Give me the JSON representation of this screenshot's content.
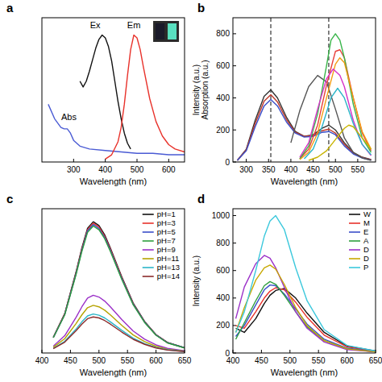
{
  "chart_data": [
    {
      "type": "line",
      "panel_label": "a",
      "xlabel": "Wavelength (nm)",
      "xlim": [
        200,
        650
      ],
      "xticks": [
        300,
        400,
        500,
        600
      ],
      "ylim": [
        0,
        100
      ],
      "tick_labels": "x",
      "annotations": [
        {
          "text": "Ex",
          "x": 368,
          "y": 93
        },
        {
          "text": "Em",
          "x": 490,
          "y": 93
        },
        {
          "text": "Abs",
          "x": 285,
          "y": 29
        }
      ],
      "series": [
        {
          "name": "Abs",
          "color": "#4a5bd4",
          "x": [
            220,
            240,
            260,
            270,
            280,
            290,
            300,
            320,
            350,
            400,
            450,
            500,
            550,
            600,
            650
          ],
          "values": [
            40,
            30,
            24,
            23,
            23,
            20,
            15,
            11,
            9,
            8,
            7,
            6,
            6,
            5,
            5
          ]
        },
        {
          "name": "Ex",
          "color": "#111111",
          "x": [
            320,
            330,
            340,
            350,
            360,
            370,
            380,
            390,
            400,
            410,
            420,
            430,
            440,
            450,
            460,
            470,
            480
          ],
          "values": [
            56,
            52,
            56,
            63,
            71,
            79,
            85,
            88,
            86,
            80,
            70,
            56,
            42,
            30,
            20,
            13,
            9
          ]
        },
        {
          "name": "Em",
          "color": "#e8322b",
          "x": [
            400,
            420,
            440,
            450,
            460,
            470,
            480,
            490,
            500,
            510,
            520,
            540,
            560,
            580,
            600,
            620,
            650
          ],
          "values": [
            2,
            5,
            14,
            24,
            40,
            60,
            78,
            88,
            86,
            78,
            66,
            44,
            28,
            18,
            12,
            9,
            7
          ]
        }
      ]
    },
    {
      "type": "line",
      "panel_label": "b",
      "xlabel": "Wavelength (nm)",
      "ylabel": [
        "Intensity (a.u.)",
        "Absorption (a.u.)"
      ],
      "xlim": [
        270,
        590
      ],
      "xticks": [
        300,
        350,
        400,
        450,
        500,
        550
      ],
      "ylim": [
        0,
        900
      ],
      "yticks": [
        0,
        200,
        400,
        600,
        800
      ],
      "vlines": [
        355,
        485
      ],
      "series": [
        {
          "color": "#333333",
          "x": [
            280,
            300,
            320,
            340,
            355,
            370,
            390,
            410,
            430,
            450,
            470,
            485,
            500,
            520,
            540,
            560,
            580
          ],
          "values": [
            10,
            80,
            260,
            410,
            450,
            400,
            280,
            190,
            160,
            170,
            210,
            230,
            200,
            120,
            60,
            30,
            15
          ]
        },
        {
          "color": "#c0392b",
          "x": [
            280,
            300,
            320,
            340,
            355,
            370,
            390,
            410,
            430,
            450,
            470,
            485,
            500,
            520,
            540,
            560,
            580
          ],
          "values": [
            10,
            75,
            240,
            380,
            420,
            375,
            265,
            185,
            160,
            165,
            195,
            205,
            180,
            110,
            55,
            28,
            14
          ]
        },
        {
          "color": "#3a4fc9",
          "x": [
            280,
            300,
            320,
            340,
            355,
            370,
            390,
            410,
            430,
            450,
            470,
            485,
            500,
            520,
            540,
            560,
            580
          ],
          "values": [
            10,
            70,
            220,
            350,
            390,
            350,
            250,
            180,
            155,
            160,
            185,
            190,
            170,
            100,
            50,
            25,
            12
          ]
        },
        {
          "color": "#555555",
          "x": [
            400,
            420,
            440,
            460,
            480,
            500,
            520,
            540,
            560,
            580
          ],
          "values": [
            120,
            320,
            470,
            540,
            500,
            330,
            150,
            60,
            25,
            10
          ]
        },
        {
          "color": "#e8413c",
          "x": [
            420,
            440,
            460,
            480,
            500,
            510,
            520,
            540,
            560,
            580
          ],
          "values": [
            20,
            80,
            230,
            480,
            690,
            700,
            650,
            400,
            180,
            70
          ]
        },
        {
          "color": "#39b54a",
          "x": [
            420,
            440,
            460,
            480,
            490,
            500,
            510,
            520,
            540,
            560,
            580
          ],
          "values": [
            20,
            100,
            300,
            600,
            760,
            800,
            760,
            650,
            360,
            150,
            60
          ]
        },
        {
          "color": "#f39c12",
          "x": [
            420,
            440,
            460,
            480,
            500,
            510,
            520,
            540,
            560,
            580
          ],
          "values": [
            15,
            60,
            180,
            400,
            610,
            650,
            620,
            400,
            190,
            80
          ]
        },
        {
          "color": "#d633c8",
          "x": [
            420,
            440,
            460,
            480,
            495,
            510,
            520,
            540,
            560,
            580
          ],
          "values": [
            30,
            120,
            330,
            520,
            580,
            540,
            470,
            260,
            110,
            40
          ]
        },
        {
          "color": "#2bb5c8",
          "x": [
            430,
            450,
            470,
            490,
            505,
            520,
            540,
            560,
            580
          ],
          "values": [
            20,
            80,
            220,
            400,
            460,
            400,
            240,
            110,
            45
          ]
        },
        {
          "color": "#c8b400",
          "x": [
            440,
            460,
            480,
            500,
            520,
            530,
            540,
            560,
            580
          ],
          "values": [
            10,
            30,
            70,
            140,
            210,
            230,
            220,
            150,
            80
          ]
        }
      ]
    },
    {
      "type": "line",
      "panel_label": "c",
      "xlabel": "Wavelength (nm)",
      "legend": "upper right",
      "xlim": [
        400,
        650
      ],
      "xticks": [
        400,
        450,
        500,
        550,
        600,
        650
      ],
      "ylim": [
        0,
        1000
      ],
      "tick_labels": "x",
      "series": [
        {
          "name": "pH=1",
          "color": "#111111",
          "x": [
            420,
            440,
            460,
            470,
            480,
            490,
            500,
            510,
            520,
            540,
            560,
            580,
            600,
            620,
            650
          ],
          "values": [
            109,
            273,
            564,
            728,
            865,
            910,
            883,
            819,
            728,
            528,
            346,
            218,
            127,
            73,
            36
          ]
        },
        {
          "name": "pH=3",
          "color": "#e8322b",
          "x": [
            420,
            440,
            460,
            470,
            480,
            490,
            500,
            510,
            520,
            540,
            560,
            580,
            600,
            620,
            650
          ],
          "values": [
            108,
            270,
            558,
            720,
            855,
            900,
            873,
            810,
            720,
            522,
            342,
            216,
            126,
            72,
            36
          ]
        },
        {
          "name": "pH=5",
          "color": "#3a4fc9",
          "x": [
            420,
            440,
            460,
            470,
            480,
            490,
            500,
            510,
            520,
            540,
            560,
            580,
            600,
            620,
            650
          ],
          "values": [
            107,
            267,
            552,
            712,
            846,
            890,
            863,
            801,
            712,
            516,
            338,
            214,
            125,
            71,
            36
          ]
        },
        {
          "name": "pH=7",
          "color": "#2e9e3e",
          "x": [
            420,
            440,
            460,
            470,
            480,
            490,
            500,
            510,
            520,
            540,
            560,
            580,
            600,
            620,
            650
          ],
          "values": [
            106,
            264,
            546,
            704,
            836,
            880,
            854,
            792,
            704,
            510,
            334,
            211,
            123,
            70,
            35
          ]
        },
        {
          "name": "pH=9",
          "color": "#9b30c8",
          "x": [
            420,
            440,
            460,
            470,
            480,
            490,
            500,
            510,
            520,
            540,
            560,
            580,
            600,
            620,
            650
          ],
          "values": [
            48,
            120,
            248,
            320,
            380,
            400,
            388,
            360,
            320,
            232,
            152,
            96,
            56,
            32,
            16
          ]
        },
        {
          "name": "pH=11",
          "color": "#b5a300",
          "x": [
            420,
            440,
            460,
            470,
            480,
            490,
            500,
            510,
            520,
            540,
            560,
            580,
            600,
            620,
            650
          ],
          "values": [
            40,
            99,
            205,
            264,
            314,
            330,
            320,
            297,
            264,
            191,
            125,
            79,
            46,
            26,
            13
          ]
        },
        {
          "name": "pH=13",
          "color": "#2bb5c8",
          "x": [
            420,
            440,
            460,
            470,
            480,
            490,
            500,
            510,
            520,
            540,
            560,
            580,
            600,
            620,
            650
          ],
          "values": [
            32,
            81,
            167,
            216,
            257,
            270,
            262,
            243,
            216,
            157,
            103,
            65,
            38,
            22,
            11
          ]
        },
        {
          "name": "pH=14",
          "color": "#8b2a2a",
          "x": [
            420,
            440,
            460,
            470,
            480,
            490,
            500,
            510,
            520,
            540,
            560,
            580,
            600,
            620,
            650
          ],
          "values": [
            30,
            75,
            155,
            200,
            238,
            250,
            243,
            225,
            200,
            145,
            95,
            60,
            35,
            20,
            10
          ]
        }
      ]
    },
    {
      "type": "line",
      "panel_label": "d",
      "xlabel": "Wavelength (nm)",
      "ylabel": [
        "Intensity (a.u.)"
      ],
      "legend": "upper right",
      "xlim": [
        400,
        650
      ],
      "xticks": [
        400,
        450,
        500,
        550,
        600,
        650
      ],
      "ylim": [
        0,
        1050
      ],
      "yticks": [
        0,
        200,
        400,
        600,
        800,
        1000
      ],
      "series": [
        {
          "name": "W",
          "color": "#111111",
          "x": [
            405,
            420,
            440,
            455,
            465,
            475,
            490,
            510,
            530,
            560,
            600,
            650
          ],
          "values": [
            180,
            150,
            250,
            360,
            420,
            455,
            470,
            400,
            290,
            150,
            50,
            15
          ]
        },
        {
          "name": "M",
          "color": "#e8322b",
          "x": [
            405,
            420,
            440,
            455,
            465,
            475,
            490,
            510,
            530,
            560,
            600,
            650
          ],
          "values": [
            200,
            180,
            300,
            400,
            450,
            475,
            460,
            370,
            260,
            130,
            45,
            12
          ]
        },
        {
          "name": "E",
          "color": "#3a4fc9",
          "x": [
            405,
            420,
            440,
            455,
            465,
            475,
            490,
            510,
            530,
            560,
            600,
            650
          ],
          "values": [
            120,
            200,
            350,
            460,
            495,
            490,
            430,
            320,
            210,
            100,
            35,
            10
          ]
        },
        {
          "name": "A",
          "color": "#2e9e3e",
          "x": [
            405,
            420,
            440,
            455,
            465,
            475,
            490,
            510,
            530,
            560,
            600,
            650
          ],
          "values": [
            100,
            220,
            380,
            490,
            520,
            500,
            420,
            300,
            190,
            90,
            30,
            8
          ]
        },
        {
          "name": "D",
          "color": "#9b30c8",
          "x": [
            405,
            420,
            440,
            455,
            465,
            475,
            490,
            510,
            530,
            560,
            600,
            650
          ],
          "values": [
            250,
            480,
            650,
            710,
            690,
            620,
            480,
            300,
            180,
            80,
            25,
            8
          ]
        },
        {
          "name": "D",
          "color": "#c8a800",
          "x": [
            405,
            420,
            440,
            455,
            465,
            475,
            490,
            510,
            530,
            560,
            600,
            650
          ],
          "values": [
            150,
            330,
            530,
            620,
            640,
            610,
            500,
            330,
            200,
            90,
            30,
            8
          ]
        },
        {
          "name": "P",
          "color": "#3cc8dc",
          "x": [
            405,
            420,
            440,
            455,
            465,
            475,
            490,
            510,
            530,
            560,
            600,
            650
          ],
          "values": [
            150,
            300,
            600,
            850,
            960,
            1000,
            900,
            620,
            380,
            170,
            55,
            15
          ]
        }
      ]
    }
  ]
}
